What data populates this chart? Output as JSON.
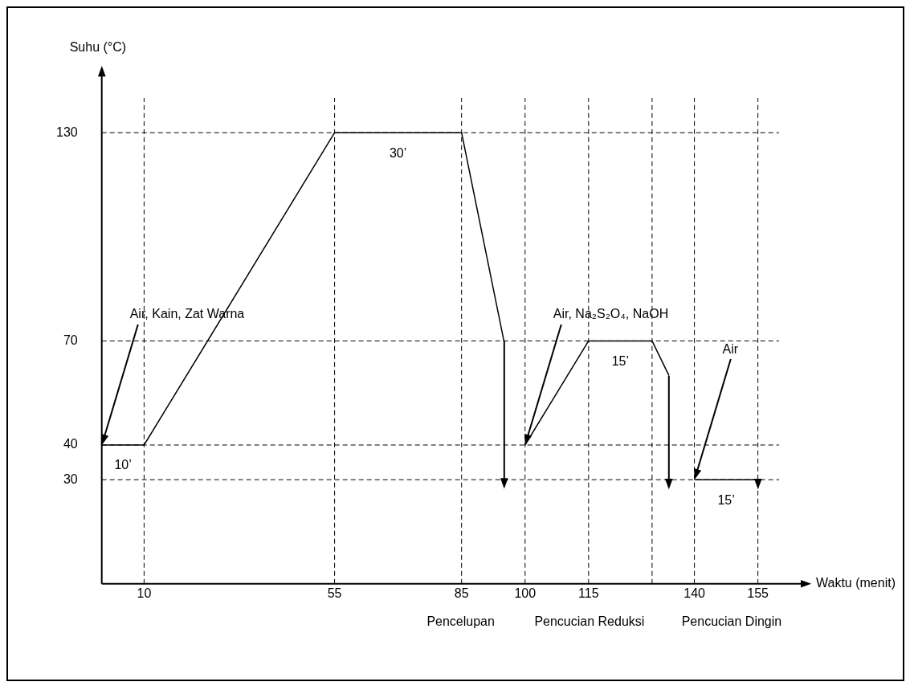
{
  "chart_data": {
    "type": "line",
    "xlabel": "Waktu (menit)",
    "ylabel": "Suhu (°C)",
    "xlim": [
      0,
      160
    ],
    "ylim": [
      0,
      140
    ],
    "xticks": [
      10,
      55,
      85,
      100,
      115,
      140,
      155
    ],
    "yticks": [
      30,
      40,
      70,
      130
    ],
    "grid": false,
    "legend": false,
    "marker": "none",
    "line_style": "solid",
    "series": [
      {
        "color": "#000000",
        "x": [
          0,
          10,
          55,
          85,
          95
        ],
        "values": [
          40,
          40,
          130,
          130,
          70
        ]
      },
      {
        "color": "#000000",
        "x": [
          100,
          115,
          130,
          134
        ],
        "values": [
          40,
          70,
          70,
          60
        ]
      },
      {
        "color": "#000000",
        "x": [
          140,
          155
        ],
        "values": [
          30,
          30
        ]
      }
    ],
    "ref_lines": [
      {
        "axis": "y",
        "value": 130,
        "line_style": "dashed"
      },
      {
        "axis": "y",
        "value": 70,
        "line_style": "dashed"
      },
      {
        "axis": "y",
        "value": 40,
        "line_style": "dashed"
      },
      {
        "axis": "y",
        "value": 30,
        "line_style": "dashed"
      },
      {
        "axis": "x",
        "value": 10,
        "line_style": "dashed"
      },
      {
        "axis": "x",
        "value": 55,
        "line_style": "dashed"
      },
      {
        "axis": "x",
        "value": 85,
        "line_style": "dashed"
      },
      {
        "axis": "x",
        "value": 100,
        "line_style": "dashed"
      },
      {
        "axis": "x",
        "value": 115,
        "line_style": "dashed"
      },
      {
        "axis": "x",
        "value": 130,
        "line_style": "dashed"
      },
      {
        "axis": "x",
        "value": 140,
        "line_style": "dashed"
      },
      {
        "axis": "x",
        "value": 155,
        "line_style": "dashed"
      }
    ],
    "annotations": [
      {
        "text": "Air, Kain, Zat Warna",
        "x": 0,
        "y": 40
      },
      {
        "text": "Air, Na₂S₂O₄, NaOH",
        "x": 100,
        "y": 40
      },
      {
        "text": "Air",
        "x": 140,
        "y": 30
      },
      {
        "text": "10’",
        "x": 5,
        "y": 40
      },
      {
        "text": "30’",
        "x": 70,
        "y": 130
      },
      {
        "text": "15’",
        "x": 122.5,
        "y": 70
      },
      {
        "text": "15’",
        "x": 147.5,
        "y": 30
      },
      "Pencelupan",
      "Pencucian Reduksi",
      "Pencucian Dingin"
    ]
  }
}
